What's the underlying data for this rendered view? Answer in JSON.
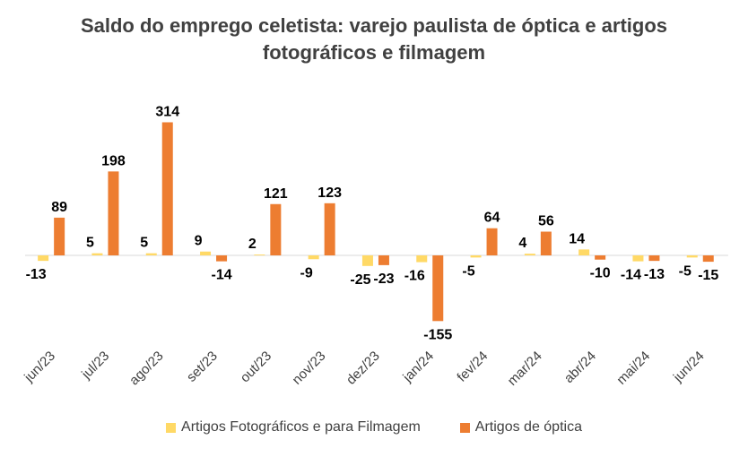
{
  "chart_data": {
    "type": "bar",
    "title_lines": [
      "Saldo do emprego celetista: varejo paulista de óptica e artigos",
      "fotográficos e filmagem"
    ],
    "categories": [
      "jun/23",
      "jul/23",
      "ago/23",
      "set/23",
      "out/23",
      "nov/23",
      "dez/23",
      "jan/24",
      "fev/24",
      "mar/24",
      "abr/24",
      "mai/24",
      "jun/24"
    ],
    "series": [
      {
        "name": "Artigos Fotográficos e para Filmagem",
        "color": "#FFD966",
        "values": [
          -13,
          5,
          5,
          9,
          2,
          -9,
          -25,
          -16,
          -5,
          4,
          14,
          -14,
          -5
        ]
      },
      {
        "name": "Artigos de óptica",
        "color": "#ED7D31",
        "values": [
          89,
          198,
          314,
          -14,
          121,
          123,
          -23,
          -155,
          64,
          56,
          -10,
          -13,
          -15
        ]
      }
    ],
    "legend_position": "bottom",
    "grid": false
  }
}
